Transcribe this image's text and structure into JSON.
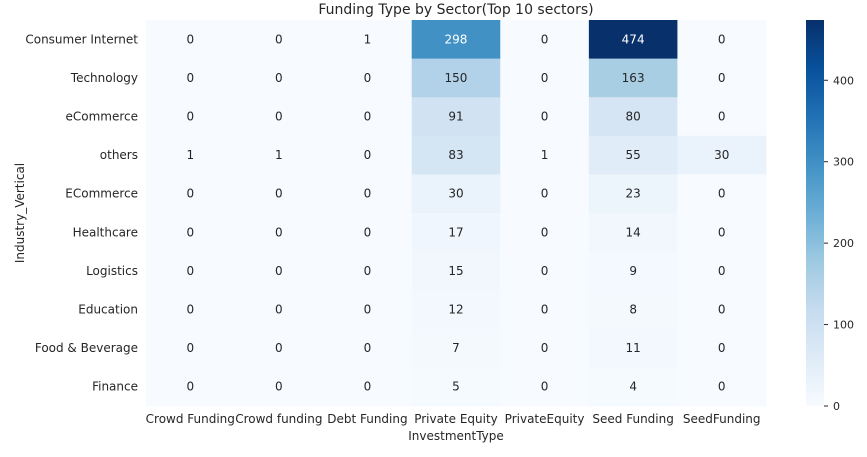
{
  "chart_data": {
    "type": "heatmap",
    "title": "Funding Type by Sector(Top 10 sectors)",
    "xlabel": "InvestmentType",
    "ylabel": "Industry_Vertical",
    "x_categories": [
      "Crowd Funding",
      "Crowd funding",
      "Debt Funding",
      "Private Equity",
      "PrivateEquity",
      "Seed Funding",
      "SeedFunding"
    ],
    "y_categories": [
      "Consumer Internet",
      "Technology",
      "eCommerce",
      "others",
      "ECommerce",
      "Healthcare",
      "Logistics",
      "Education",
      "Food & Beverage",
      "Finance"
    ],
    "values": [
      [
        0,
        0,
        1,
        298,
        0,
        474,
        0
      ],
      [
        0,
        0,
        0,
        150,
        0,
        163,
        0
      ],
      [
        0,
        0,
        0,
        91,
        0,
        80,
        0
      ],
      [
        1,
        1,
        0,
        83,
        1,
        55,
        30
      ],
      [
        0,
        0,
        0,
        30,
        0,
        23,
        0
      ],
      [
        0,
        0,
        0,
        17,
        0,
        14,
        0
      ],
      [
        0,
        0,
        0,
        15,
        0,
        9,
        0
      ],
      [
        0,
        0,
        0,
        12,
        0,
        8,
        0
      ],
      [
        0,
        0,
        0,
        7,
        0,
        11,
        0
      ],
      [
        0,
        0,
        0,
        5,
        0,
        4,
        0
      ]
    ],
    "colorscale": "Blues",
    "color_range": [
      0,
      474
    ],
    "colorbar_ticks": [
      0,
      100,
      200,
      300,
      400
    ],
    "annotate": true
  }
}
